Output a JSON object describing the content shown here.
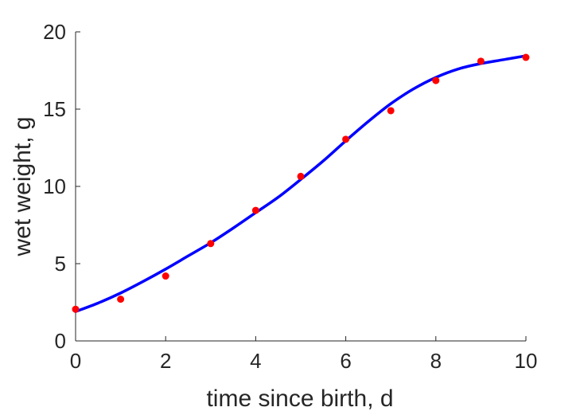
{
  "chart_data": {
    "type": "scatter",
    "xlabel": "time since birth, d",
    "ylabel": "wet weight, g",
    "xlim": [
      0,
      10
    ],
    "ylim": [
      0,
      20
    ],
    "x_ticks": [
      0,
      2,
      4,
      6,
      8,
      10
    ],
    "y_ticks": [
      0,
      5,
      10,
      15,
      20
    ],
    "x_tick_labels": [
      "0",
      "2",
      "4",
      "6",
      "8",
      "10"
    ],
    "y_tick_labels": [
      "0",
      "5",
      "10",
      "15",
      "20"
    ],
    "grid": false,
    "series": [
      {
        "kind": "points",
        "color": "#ff0000",
        "x": [
          0,
          1,
          2,
          3,
          4,
          5,
          6,
          7,
          8,
          9,
          10
        ],
        "y": [
          2.05,
          2.7,
          4.2,
          6.3,
          8.45,
          10.65,
          13.05,
          14.9,
          16.85,
          18.1,
          18.35
        ]
      },
      {
        "kind": "fit-line",
        "color": "#0000ff",
        "x": [
          0,
          0.5,
          1,
          1.5,
          2,
          2.5,
          3,
          3.5,
          4,
          4.5,
          5,
          5.5,
          6,
          6.5,
          7,
          7.5,
          8,
          8.5,
          9,
          9.5,
          10
        ],
        "y": [
          1.9,
          2.45,
          3.1,
          3.85,
          4.65,
          5.5,
          6.35,
          7.3,
          8.3,
          9.3,
          10.45,
          11.65,
          12.95,
          14.2,
          15.35,
          16.3,
          17.05,
          17.6,
          17.95,
          18.2,
          18.45
        ]
      }
    ]
  }
}
